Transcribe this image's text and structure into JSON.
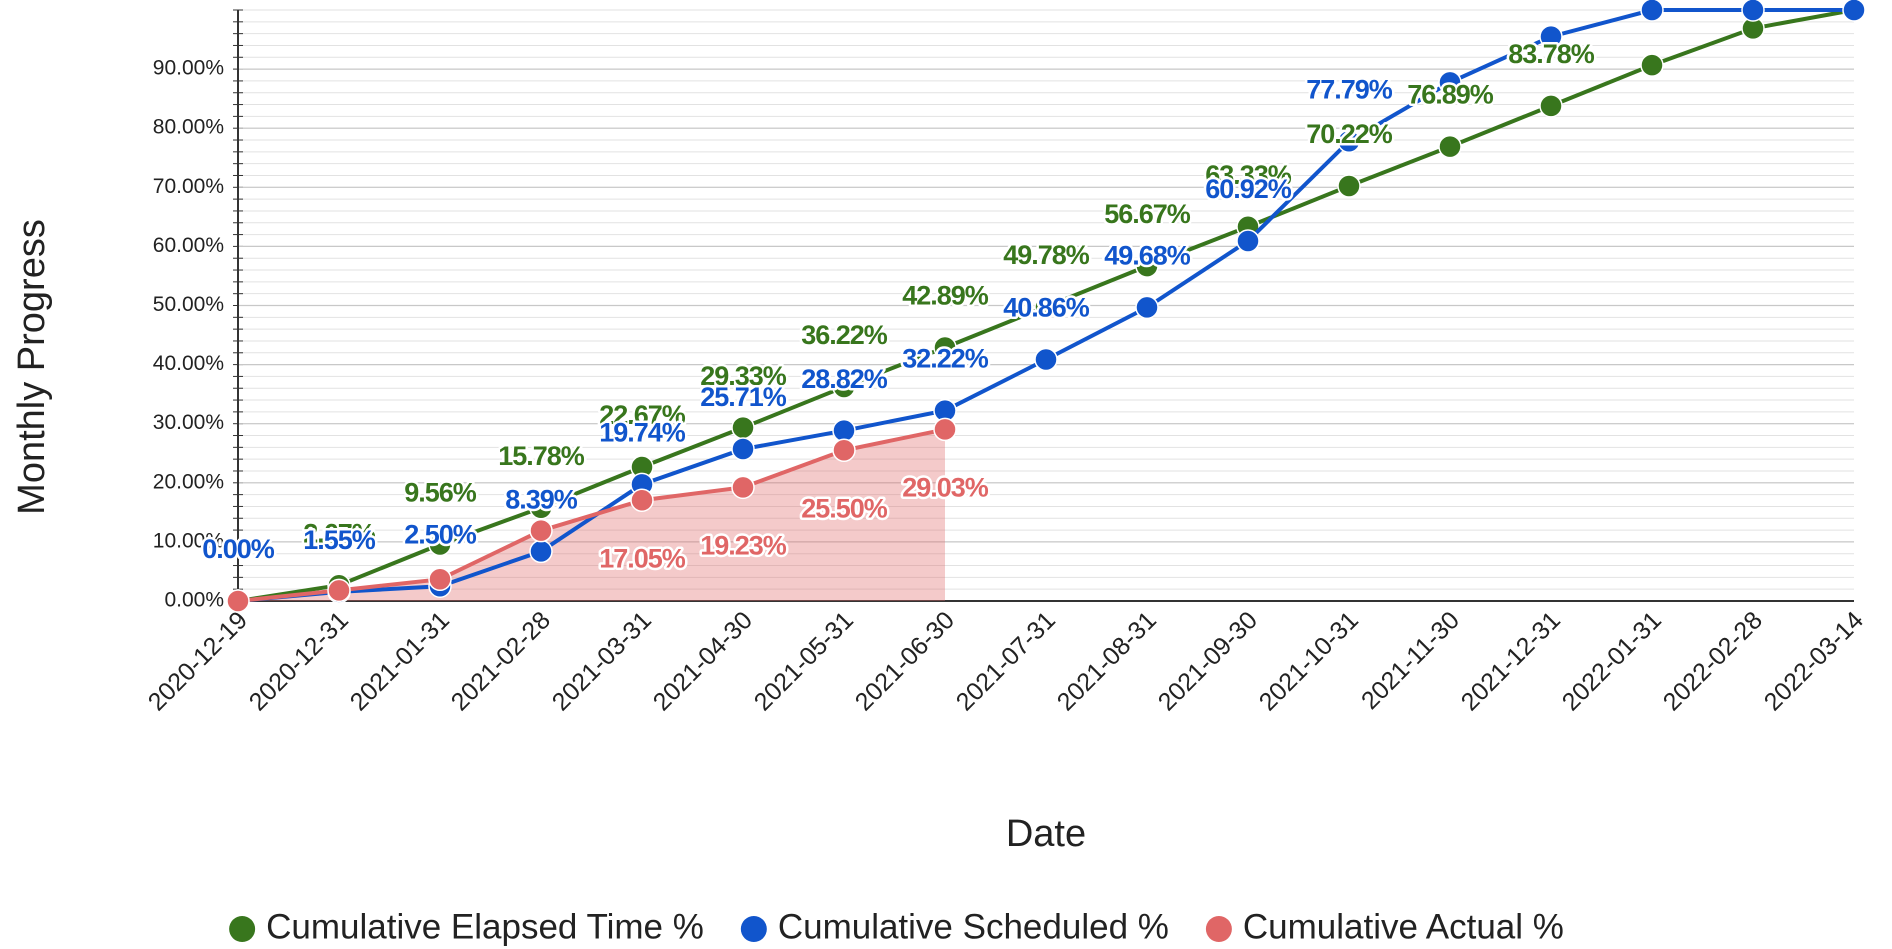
{
  "chart_data": {
    "type": "line",
    "x_label": "Date",
    "y_label": "Monthly Progress",
    "categories": [
      "2020-12-19",
      "2020-12-31",
      "2021-01-31",
      "2021-02-28",
      "2021-03-31",
      "2021-04-30",
      "2021-05-31",
      "2021-06-30",
      "2021-07-31",
      "2021-08-31",
      "2021-09-30",
      "2021-10-31",
      "2021-11-30",
      "2021-12-31",
      "2022-01-31",
      "2022-02-28",
      "2022-03-14"
    ],
    "ylim": [
      0,
      100
    ],
    "yticks": [
      {
        "value": 0,
        "label": "0.00%"
      },
      {
        "value": 10,
        "label": "10.00%"
      },
      {
        "value": 20,
        "label": "20.00%"
      },
      {
        "value": 30,
        "label": "30.00%"
      },
      {
        "value": 40,
        "label": "40.00%"
      },
      {
        "value": 50,
        "label": "50.00%"
      },
      {
        "value": 60,
        "label": "60.00%"
      },
      {
        "value": 70,
        "label": "70.00%"
      },
      {
        "value": 80,
        "label": "80.00%"
      },
      {
        "value": 90,
        "label": "90.00%"
      }
    ],
    "grid": true,
    "legend": "bottom",
    "series": [
      {
        "name": "Cumulative Elapsed Time %",
        "color": "#38761d",
        "label_position": "above",
        "values": [
          0,
          2.67,
          9.56,
          15.78,
          22.67,
          29.33,
          36.22,
          42.89,
          49.78,
          56.67,
          63.33,
          70.22,
          76.89,
          83.78,
          90.67,
          96.89,
          100
        ],
        "value_labels": [
          null,
          "2.67%",
          "9.56%",
          "15.78%",
          "22.67%",
          "29.33%",
          "36.22%",
          "42.89%",
          "49.78%",
          "56.67%",
          "63.33%",
          "70.22%",
          "76.89%",
          "83.78%",
          null,
          null,
          null
        ]
      },
      {
        "name": "Cumulative Scheduled %",
        "color": "#1155cc",
        "label_position": "above",
        "values": [
          0,
          1.55,
          2.5,
          8.39,
          19.74,
          25.71,
          28.82,
          32.22,
          40.86,
          49.68,
          60.92,
          77.79,
          87.75,
          95.5,
          100,
          100,
          100
        ],
        "value_labels": [
          "0.00%",
          "1.55%",
          "2.50%",
          "8.39%",
          "19.74%",
          "25.71%",
          "28.82%",
          "32.22%",
          "40.86%",
          "49.68%",
          "60.92%",
          "77.79%",
          null,
          null,
          null,
          null,
          null
        ]
      },
      {
        "name": "Cumulative Actual %",
        "color": "#e06666",
        "label_position": "below",
        "area": true,
        "values": [
          0,
          1.8,
          3.67,
          11.9,
          17.05,
          19.23,
          25.5,
          29.03,
          null,
          null,
          null,
          null,
          null,
          null,
          null,
          null,
          null
        ],
        "value_labels": [
          null,
          null,
          null,
          null,
          "17.05%",
          "19.23%",
          "25.50%",
          "29.03%",
          null,
          null,
          null,
          null,
          null,
          null,
          null,
          null,
          null
        ]
      }
    ]
  }
}
